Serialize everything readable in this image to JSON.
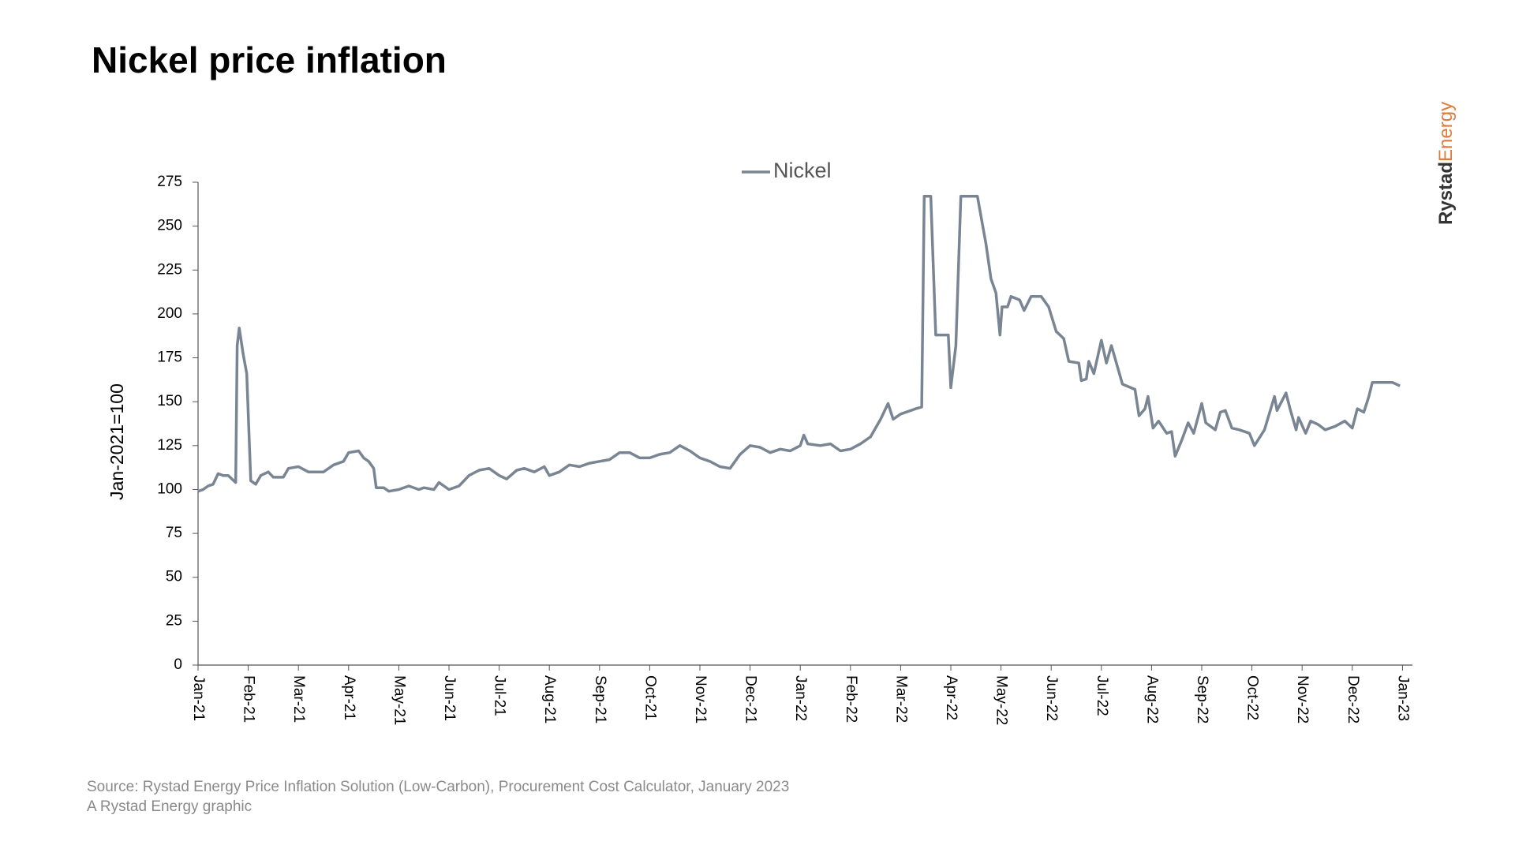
{
  "chart_data": {
    "type": "line",
    "title": "Nickel price inflation",
    "y_label": "Jan-2021=100",
    "source": "Source: Rystad Energy Price Inflation Solution (Low-Carbon), Procurement Cost Calculator, January 2023",
    "credit": "A Rystad Energy graphic",
    "x": [
      0,
      0.1,
      0.2,
      0.3,
      0.4,
      0.5,
      0.6,
      0.75,
      0.78,
      0.82,
      0.9,
      0.97,
      1.05,
      1.15,
      1.25,
      1.4,
      1.5,
      1.7,
      1.8,
      2.0,
      2.2,
      2.5,
      2.7,
      2.9,
      3.0,
      3.2,
      3.3,
      3.4,
      3.5,
      3.55,
      3.7,
      3.8,
      4.0,
      4.2,
      4.4,
      4.5,
      4.7,
      4.8,
      5.0,
      5.2,
      5.4,
      5.6,
      5.8,
      6.0,
      6.15,
      6.35,
      6.5,
      6.7,
      6.9,
      7.0,
      7.2,
      7.4,
      7.6,
      7.8,
      8.0,
      8.2,
      8.4,
      8.6,
      8.8,
      9.0,
      9.2,
      9.4,
      9.6,
      9.8,
      10.0,
      10.2,
      10.4,
      10.6,
      10.8,
      11.0,
      11.2,
      11.4,
      11.6,
      11.8,
      12.0,
      12.07,
      12.15,
      12.4,
      12.6,
      12.8,
      13.0,
      13.2,
      13.4,
      13.6,
      13.75,
      13.85,
      14.0,
      14.3,
      14.42,
      14.47,
      14.6,
      14.7,
      14.95,
      15.0,
      15.1,
      15.2,
      15.53,
      15.7,
      15.8,
      15.9,
      15.98,
      16.02,
      16.13,
      16.2,
      16.37,
      16.46,
      16.6,
      16.8,
      16.95,
      17.1,
      17.25,
      17.35,
      17.55,
      17.6,
      17.7,
      17.75,
      17.85,
      18.0,
      18.1,
      18.2,
      18.42,
      18.67,
      18.75,
      18.87,
      18.93,
      19.03,
      19.14,
      19.3,
      19.4,
      19.47,
      19.6,
      19.73,
      19.84,
      20.0,
      20.08,
      20.27,
      20.37,
      20.47,
      20.6,
      20.75,
      20.95,
      21.05,
      21.25,
      21.45,
      21.5,
      21.68,
      21.76,
      21.88,
      21.93,
      22.07,
      22.17,
      22.32,
      22.46,
      22.66,
      22.85,
      23.0,
      23.1,
      23.23,
      23.33,
      23.4,
      23.8,
      23.95
    ],
    "series": [
      {
        "name": "Nickel",
        "color": "#7a8594",
        "values": [
          99,
          100,
          102,
          103,
          109,
          108,
          108,
          104,
          182,
          192,
          177,
          166,
          105,
          103,
          108,
          110,
          107,
          107,
          112,
          113,
          110,
          110,
          114,
          116,
          121,
          122,
          118,
          116,
          112,
          101,
          101,
          99,
          100,
          102,
          100,
          101,
          100,
          104,
          100,
          102,
          108,
          111,
          112,
          108,
          106,
          111,
          112,
          110,
          113,
          108,
          110,
          114,
          113,
          115,
          116,
          117,
          121,
          121,
          118,
          118,
          120,
          121,
          125,
          122,
          118,
          116,
          113,
          112,
          120,
          125,
          124,
          121,
          123,
          122,
          125,
          131,
          126,
          125,
          126,
          122,
          123,
          126,
          130,
          140,
          149,
          140,
          143,
          146,
          147,
          267,
          267,
          188,
          188,
          158,
          182,
          267,
          267,
          240,
          220,
          212,
          188,
          204,
          204,
          210,
          208,
          202,
          210,
          210,
          204,
          190,
          186,
          173,
          172,
          162,
          163,
          173,
          166,
          185,
          172,
          182,
          160,
          157,
          142,
          146,
          153,
          135,
          139,
          132,
          133,
          119,
          128,
          138,
          132,
          149,
          138,
          134,
          144,
          145,
          135,
          134,
          132,
          125,
          134,
          153,
          145,
          155,
          146,
          134,
          141,
          132,
          139,
          137,
          134,
          136,
          139,
          135,
          146,
          144,
          153,
          161,
          161,
          159
        ]
      }
    ],
    "xlim": [
      0,
      24.2
    ],
    "xticks": [
      {
        "value": 0,
        "label": "Jan-21"
      },
      {
        "value": 1,
        "label": "Feb-21"
      },
      {
        "value": 2,
        "label": "Mar-21"
      },
      {
        "value": 3,
        "label": "Apr-21"
      },
      {
        "value": 4,
        "label": "May-21"
      },
      {
        "value": 5,
        "label": "Jun-21"
      },
      {
        "value": 6,
        "label": "Jul-21"
      },
      {
        "value": 7,
        "label": "Aug-21"
      },
      {
        "value": 8,
        "label": "Sep-21"
      },
      {
        "value": 9,
        "label": "Oct-21"
      },
      {
        "value": 10,
        "label": "Nov-21"
      },
      {
        "value": 11,
        "label": "Dec-21"
      },
      {
        "value": 12,
        "label": "Jan-22"
      },
      {
        "value": 13,
        "label": "Feb-22"
      },
      {
        "value": 14,
        "label": "Mar-22"
      },
      {
        "value": 15,
        "label": "Apr-22"
      },
      {
        "value": 16,
        "label": "May-22"
      },
      {
        "value": 17,
        "label": "Jun-22"
      },
      {
        "value": 18,
        "label": "Jul-22"
      },
      {
        "value": 19,
        "label": "Aug-22"
      },
      {
        "value": 20,
        "label": "Sep-22"
      },
      {
        "value": 21,
        "label": "Oct-22"
      },
      {
        "value": 22,
        "label": "Nov-22"
      },
      {
        "value": 23,
        "label": "Dec-22"
      },
      {
        "value": 24,
        "label": "Jan-23"
      }
    ],
    "ylim": [
      0,
      275
    ],
    "yticks": [
      0,
      25,
      50,
      75,
      100,
      125,
      150,
      175,
      200,
      225,
      250,
      275
    ],
    "grid": false,
    "legend": "top"
  },
  "branding": {
    "part1": "Rystad",
    "part2": "Energy"
  }
}
